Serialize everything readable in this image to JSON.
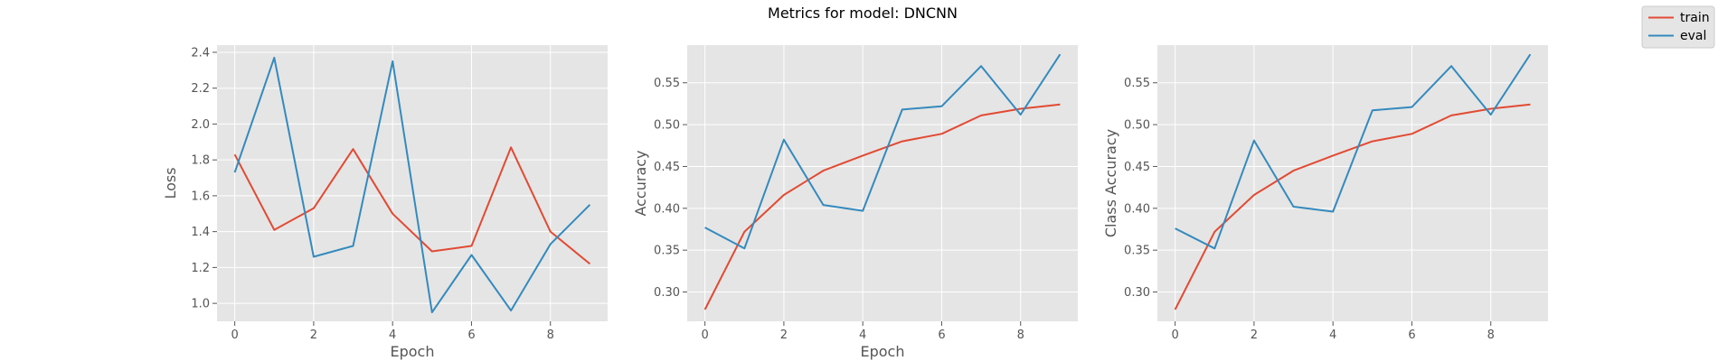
{
  "figure": {
    "title": "Metrics for model: DNCNN",
    "background": "#ffffff"
  },
  "style": {
    "panel_bg": "#e5e5e5",
    "grid_color": "#ffffff",
    "tick_color": "#555555",
    "label_color": "#555555"
  },
  "legend": {
    "placement": "top-right",
    "entries": [
      {
        "name": "train",
        "color": "#e24a33"
      },
      {
        "name": "eval",
        "color": "#348abd"
      }
    ]
  },
  "chart_data": [
    {
      "type": "line",
      "title": "",
      "xlabel": "Epoch",
      "ylabel": "Loss",
      "xlim": [
        -0.45,
        9.45
      ],
      "ylim": [
        0.9,
        2.44
      ],
      "xticks": [
        0,
        2,
        4,
        6,
        8
      ],
      "yticks": [
        1.0,
        1.2,
        1.4,
        1.6,
        1.8,
        2.0,
        2.2,
        2.4
      ],
      "ytick_labels": [
        "1.0",
        "1.2",
        "1.4",
        "1.6",
        "1.8",
        "2.0",
        "2.2",
        "2.4"
      ],
      "grid": true,
      "x": [
        0,
        1,
        2,
        3,
        4,
        5,
        6,
        7,
        8,
        9
      ],
      "series": [
        {
          "name": "train",
          "color": "#e24a33",
          "values": [
            1.83,
            1.41,
            1.53,
            1.86,
            1.5,
            1.29,
            1.32,
            1.87,
            1.4,
            1.22
          ]
        },
        {
          "name": "eval",
          "color": "#348abd",
          "values": [
            1.73,
            2.37,
            1.26,
            1.32,
            2.35,
            0.95,
            1.27,
            0.96,
            1.33,
            1.55
          ]
        }
      ]
    },
    {
      "type": "line",
      "title": "",
      "xlabel": "Epoch",
      "ylabel": "Accuracy",
      "xlim": [
        -0.45,
        9.45
      ],
      "ylim": [
        0.265,
        0.595
      ],
      "xticks": [
        0,
        2,
        4,
        6,
        8
      ],
      "yticks": [
        0.3,
        0.35,
        0.4,
        0.45,
        0.5,
        0.55
      ],
      "ytick_labels": [
        "0.30",
        "0.35",
        "0.40",
        "0.45",
        "0.50",
        "0.55"
      ],
      "grid": true,
      "x": [
        0,
        1,
        2,
        3,
        4,
        5,
        6,
        7,
        8,
        9
      ],
      "series": [
        {
          "name": "train",
          "color": "#e24a33",
          "values": [
            0.279,
            0.372,
            0.416,
            0.445,
            0.463,
            0.48,
            0.489,
            0.511,
            0.519,
            0.524
          ]
        },
        {
          "name": "eval",
          "color": "#348abd",
          "values": [
            0.377,
            0.352,
            0.482,
            0.404,
            0.397,
            0.518,
            0.522,
            0.57,
            0.512,
            0.584
          ]
        }
      ]
    },
    {
      "type": "line",
      "title": "",
      "xlabel": "",
      "ylabel": "Class Accuracy",
      "xlim": [
        -0.45,
        9.45
      ],
      "ylim": [
        0.265,
        0.595
      ],
      "xticks": [
        0,
        2,
        4,
        6,
        8
      ],
      "yticks": [
        0.3,
        0.35,
        0.4,
        0.45,
        0.5,
        0.55
      ],
      "ytick_labels": [
        "0.30",
        "0.35",
        "0.40",
        "0.45",
        "0.50",
        "0.55"
      ],
      "grid": true,
      "x": [
        0,
        1,
        2,
        3,
        4,
        5,
        6,
        7,
        8,
        9
      ],
      "series": [
        {
          "name": "train",
          "color": "#e24a33",
          "values": [
            0.279,
            0.372,
            0.416,
            0.445,
            0.463,
            0.48,
            0.489,
            0.511,
            0.519,
            0.524
          ]
        },
        {
          "name": "eval",
          "color": "#348abd",
          "values": [
            0.376,
            0.352,
            0.481,
            0.402,
            0.396,
            0.517,
            0.521,
            0.57,
            0.512,
            0.584
          ]
        }
      ]
    }
  ]
}
